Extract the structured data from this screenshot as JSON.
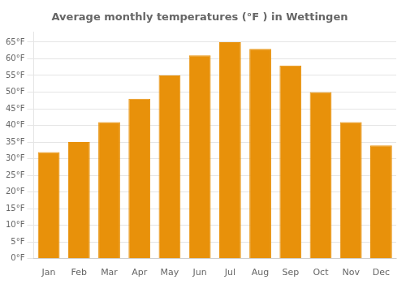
{
  "chart_data": {
    "type": "bar",
    "title": "Average monthly temperatures (°F ) in Wettingen",
    "categories": [
      "Jan",
      "Feb",
      "Mar",
      "Apr",
      "May",
      "Jun",
      "Jul",
      "Aug",
      "Sep",
      "Oct",
      "Nov",
      "Dec"
    ],
    "values": [
      32,
      35,
      41,
      48,
      55,
      61,
      65,
      63,
      58,
      50,
      41,
      34
    ],
    "color": "#E8910A",
    "ylim": [
      0,
      68
    ],
    "yticks": [
      {
        "value": 0,
        "label": "0°F"
      },
      {
        "value": 5,
        "label": "5°F"
      },
      {
        "value": 10,
        "label": "10°F"
      },
      {
        "value": 15,
        "label": "15°F"
      },
      {
        "value": 20,
        "label": "20°F"
      },
      {
        "value": 25,
        "label": "25°F"
      },
      {
        "value": 30,
        "label": "30°F"
      },
      {
        "value": 35,
        "label": "35°F"
      },
      {
        "value": 40,
        "label": "40°F"
      },
      {
        "value": 45,
        "label": "45°F"
      },
      {
        "value": 50,
        "label": "50°F"
      },
      {
        "value": 55,
        "label": "55°F"
      },
      {
        "value": 60,
        "label": "60°F"
      },
      {
        "value": 65,
        "label": "65°F"
      }
    ],
    "grid": true
  }
}
